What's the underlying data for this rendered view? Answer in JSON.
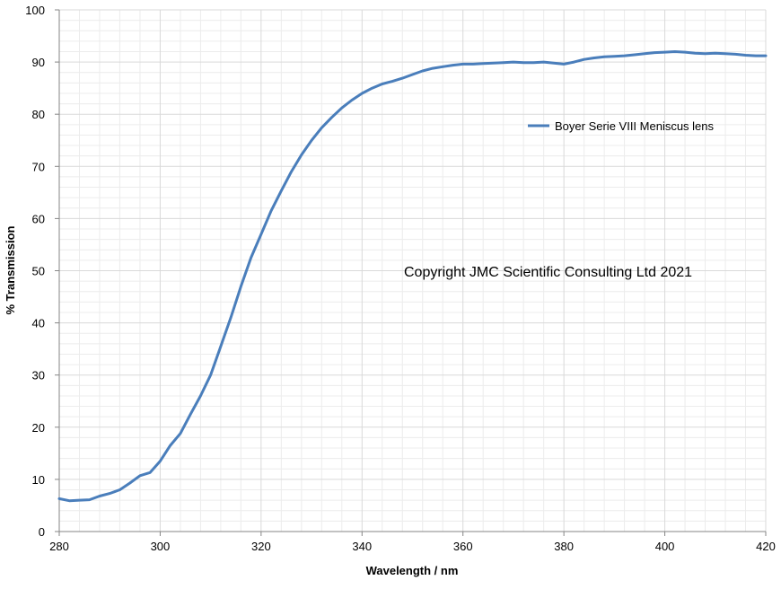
{
  "chart_data": {
    "type": "line",
    "title": "",
    "xlabel": "Wavelength / nm",
    "ylabel": "% Transmission",
    "xlim": [
      280,
      420
    ],
    "ylim": [
      0,
      100
    ],
    "xticks": [
      280,
      300,
      320,
      340,
      360,
      380,
      400,
      420
    ],
    "yticks": [
      0,
      10,
      20,
      30,
      40,
      50,
      60,
      70,
      80,
      90,
      100
    ],
    "grid": true,
    "legend_position": "right",
    "annotation": "Copyright JMC Scientific Consulting Ltd 2021",
    "series": [
      {
        "name": "Boyer Serie VIII Meniscus lens",
        "color": "#4a7ebb",
        "x": [
          280,
          282,
          284,
          286,
          288,
          290,
          292,
          294,
          296,
          298,
          300,
          302,
          304,
          306,
          308,
          310,
          312,
          314,
          316,
          318,
          320,
          322,
          324,
          326,
          328,
          330,
          332,
          334,
          336,
          338,
          340,
          342,
          344,
          346,
          348,
          350,
          352,
          354,
          356,
          358,
          360,
          362,
          364,
          366,
          368,
          370,
          372,
          374,
          376,
          378,
          380,
          382,
          384,
          386,
          388,
          390,
          392,
          394,
          396,
          398,
          400,
          402,
          404,
          406,
          408,
          410,
          412,
          414,
          416,
          418,
          420
        ],
        "y": [
          6.3,
          5.9,
          6.0,
          6.1,
          6.8,
          7.3,
          8.0,
          9.3,
          10.7,
          11.3,
          13.5,
          16.5,
          18.8,
          22.5,
          26.0,
          30.0,
          35.5,
          41.0,
          47.0,
          52.5,
          57.0,
          61.5,
          65.3,
          69.0,
          72.2,
          75.0,
          77.4,
          79.4,
          81.2,
          82.7,
          84.0,
          85.0,
          85.8,
          86.3,
          86.9,
          87.6,
          88.3,
          88.8,
          89.1,
          89.4,
          89.6,
          89.6,
          89.7,
          89.8,
          89.9,
          90.0,
          89.9,
          89.9,
          90.0,
          89.8,
          89.6,
          90.0,
          90.5,
          90.8,
          91.0,
          91.1,
          91.2,
          91.4,
          91.6,
          91.8,
          91.9,
          92.0,
          91.9,
          91.7,
          91.6,
          91.7,
          91.6,
          91.5,
          91.3,
          91.2,
          91.2
        ]
      }
    ]
  }
}
